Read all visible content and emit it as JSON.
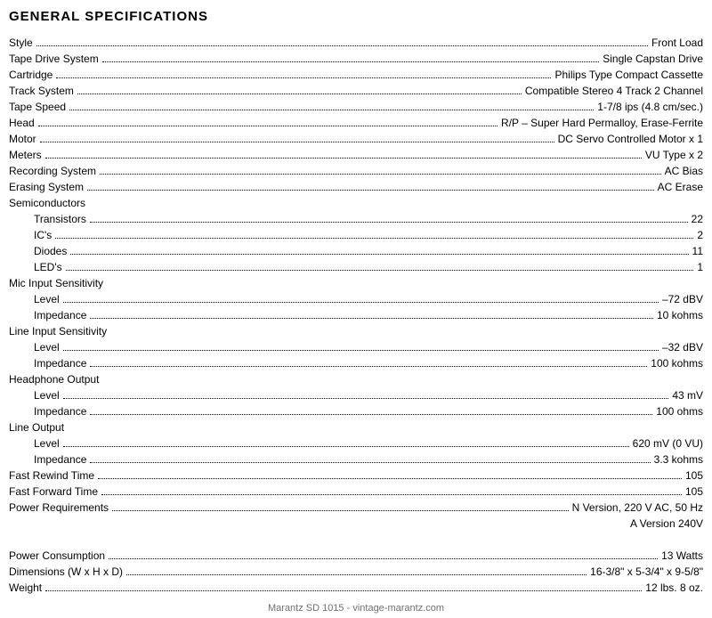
{
  "title": "GENERAL SPECIFICATIONS",
  "rows": [
    {
      "label": "Style",
      "value": "Front Load"
    },
    {
      "label": "Tape Drive System",
      "value": "Single Capstan Drive"
    },
    {
      "label": "Cartridge",
      "value": "Philips Type Compact Cassette"
    },
    {
      "label": "Track System",
      "value": "Compatible Stereo 4 Track 2 Channel"
    },
    {
      "label": "Tape Speed",
      "value": "1-7/8 ips (4.8 cm/sec.)"
    },
    {
      "label": "Head",
      "value": "R/P – Super Hard Permalloy, Erase-Ferrite"
    },
    {
      "label": "Motor",
      "value": "DC Servo Controlled Motor x 1"
    },
    {
      "label": "Meters",
      "value": "VU Type x 2"
    },
    {
      "label": "Recording System",
      "value": "AC Bias"
    },
    {
      "label": "Erasing System",
      "value": "AC Erase"
    }
  ],
  "semiconductors": {
    "header": "Semiconductors",
    "items": [
      {
        "label": "Transistors",
        "value": "22"
      },
      {
        "label": "IC's",
        "value": "2"
      },
      {
        "label": "Diodes",
        "value": "11"
      },
      {
        "label": "LED's",
        "value": "1"
      }
    ]
  },
  "mic": {
    "header": "Mic Input Sensitivity",
    "items": [
      {
        "label": "Level",
        "value": "–72 dBV"
      },
      {
        "label": "Impedance",
        "value": "10 kohms"
      }
    ]
  },
  "line_in": {
    "header": "Line Input Sensitivity",
    "items": [
      {
        "label": "Level",
        "value": "–32 dBV"
      },
      {
        "label": "Impedance",
        "value": "100 kohms"
      }
    ]
  },
  "headphone": {
    "header": "Headphone Output",
    "items": [
      {
        "label": "Level",
        "value": "43 mV"
      },
      {
        "label": "Impedance",
        "value": "100 ohms"
      }
    ]
  },
  "line_out": {
    "header": "Line Output",
    "items": [
      {
        "label": "Level",
        "value": "620 mV (0 VU)"
      },
      {
        "label": "Impedance",
        "value": "3.3 kohms"
      }
    ]
  },
  "tail": [
    {
      "label": "Fast Rewind Time",
      "value": "105"
    },
    {
      "label": "Fast Forward Time",
      "value": "105"
    },
    {
      "label": "Power Requirements",
      "value": "N Version, 220 V AC, 50 Hz"
    }
  ],
  "power_extra": "A Version 240V",
  "tail2": [
    {
      "label": "Power Consumption",
      "value": "13 Watts"
    },
    {
      "label": "Dimensions (W x H x D)",
      "value": "16-3/8\" x 5-3/4\" x 9-5/8\""
    },
    {
      "label": "Weight",
      "value": "12 lbs. 8 oz."
    }
  ],
  "footer": "Marantz SD 1015  -  vintage-marantz.com"
}
